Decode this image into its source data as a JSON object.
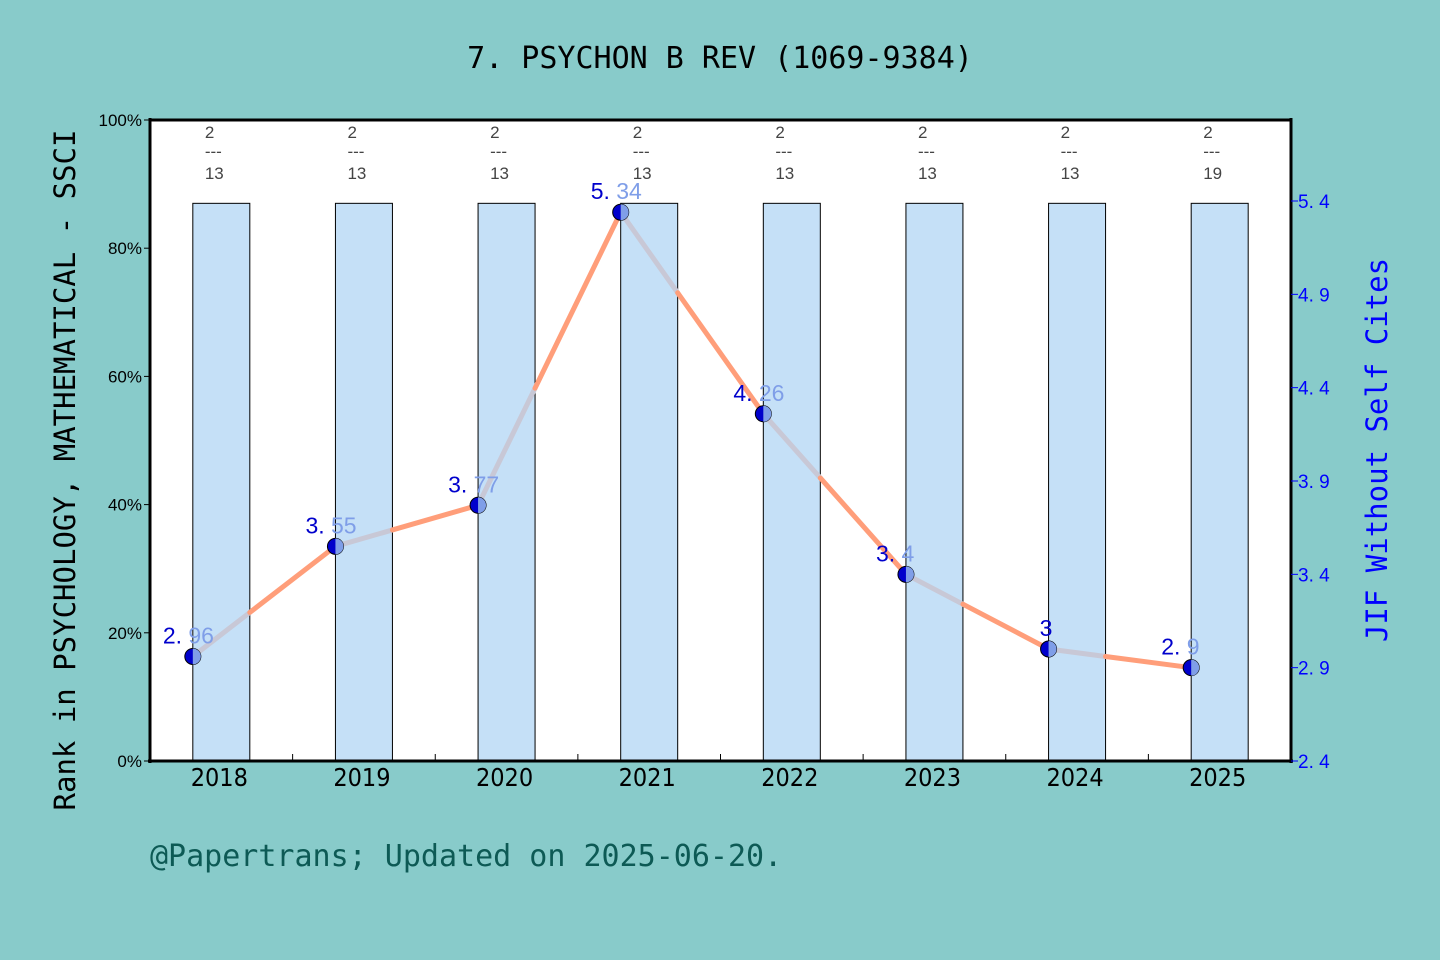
{
  "chart_data": {
    "type": "bar+line",
    "title": "7. PSYCHON B REV (1069-9384)",
    "categories": [
      "2018",
      "2019",
      "2020",
      "2021",
      "2022",
      "2023",
      "2024",
      "2025"
    ],
    "series": [
      {
        "name": "Rank in PSYCHOLOGY, MATHEMATICAL - SSCI",
        "type": "bar",
        "axis": "left",
        "values": [
          87,
          87,
          87,
          87,
          87,
          87,
          87,
          87
        ],
        "rank_labels": [
          {
            "rank": "2",
            "total": "13"
          },
          {
            "rank": "2",
            "total": "13"
          },
          {
            "rank": "2",
            "total": "13"
          },
          {
            "rank": "2",
            "total": "13"
          },
          {
            "rank": "2",
            "total": "13"
          },
          {
            "rank": "2",
            "total": "13"
          },
          {
            "rank": "2",
            "total": "13"
          },
          {
            "rank": "2",
            "total": "19"
          }
        ],
        "color": "#c5e0f7"
      },
      {
        "name": "JIF Without Self Cites",
        "type": "line",
        "axis": "right",
        "values": [
          2.96,
          3.55,
          3.77,
          5.34,
          4.26,
          3.4,
          3.0,
          2.9
        ],
        "value_labels": [
          "2.96",
          "3.55",
          "3.77",
          "5.34",
          "4.26",
          "3.4",
          "3",
          "2.9"
        ],
        "line_color": "#ff9e7a",
        "line_alt_color": "#c8c8d6",
        "marker_color": "#0000cc"
      }
    ],
    "xlabel": "",
    "ylabel": "Rank in PSYCHOLOGY, MATHEMATICAL - SSCI",
    "ylabel_right": "JIF Without Self Cites",
    "ylim": [
      0,
      100
    ],
    "ylim_right": [
      2.4,
      5.4
    ],
    "yticks": [
      "0%",
      "20%",
      "40%",
      "60%",
      "80%",
      "100%"
    ],
    "yticks_right": [
      "2.4",
      "2.9",
      "3.4",
      "3.9",
      "4.4",
      "4.9",
      "5.4"
    ],
    "grid": false,
    "legend": "none"
  },
  "footer": {
    "credit": "@Papertrans; Updated on 2025-06-20."
  },
  "colors": {
    "background": "#88cbca",
    "plot_bg": "#ffffff",
    "bar_fill": "#c5e0f7",
    "right_axis": "#0000ff",
    "footer_text": "#0d5a55"
  }
}
